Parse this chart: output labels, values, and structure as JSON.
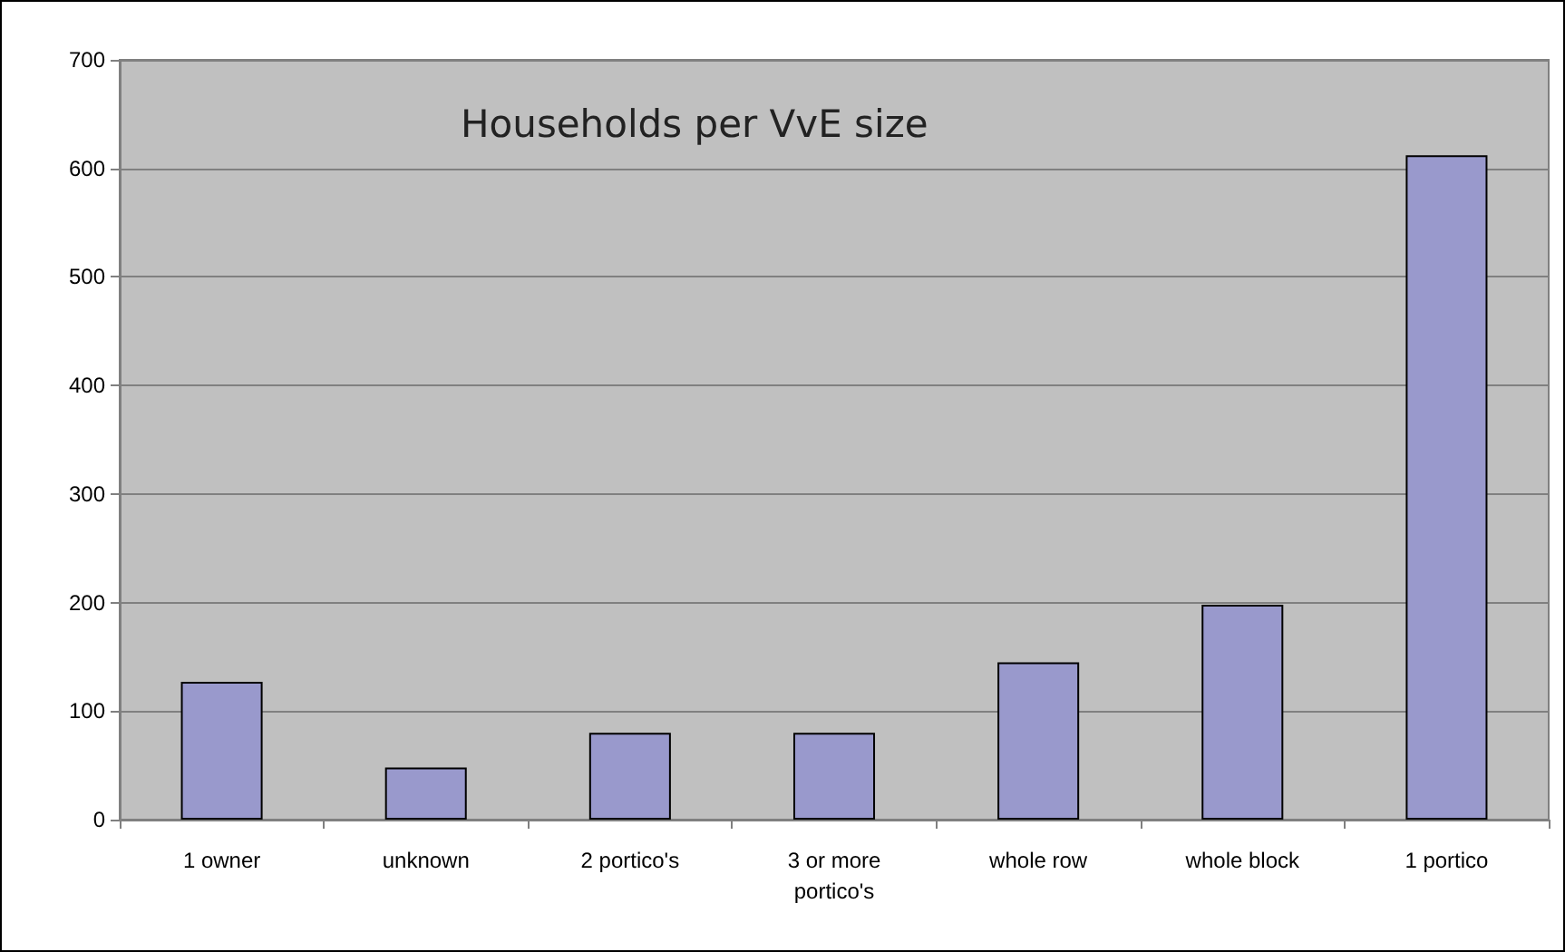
{
  "chart_data": {
    "type": "bar",
    "title": "Households per VvE size",
    "categories": [
      "1 owner",
      "unknown",
      "2 portico's",
      "3 or more\nportico's",
      "whole row",
      "whole block",
      "1 portico"
    ],
    "values": [
      127,
      48,
      80,
      80,
      145,
      198,
      612
    ],
    "color": "#9999cc",
    "ylim": [
      0,
      700
    ],
    "yticks": [
      0,
      100,
      200,
      300,
      400,
      500,
      600,
      700
    ],
    "grid": "y"
  }
}
